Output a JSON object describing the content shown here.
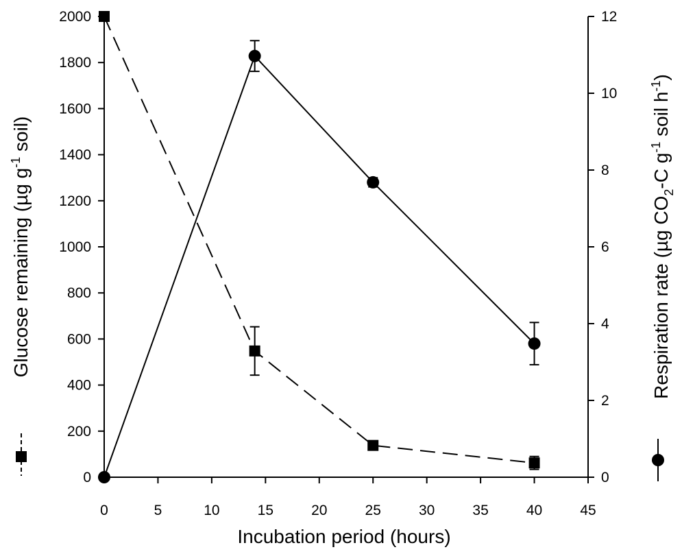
{
  "chart_data": {
    "type": "line",
    "xlabel": "Incubation period (hours)",
    "ylabel_left": {
      "text": "Glucose remaining (µg g",
      "sup": "-1",
      "tail": " soil)"
    },
    "ylabel_right": {
      "text": "Respiration rate (µg CO",
      "sub": "2",
      "mid": "-C g",
      "sup1": "-1",
      "mid2": " soil h",
      "sup2": "-1",
      "tail": ")"
    },
    "xlim": [
      0,
      45
    ],
    "ylim_left": [
      0,
      2000
    ],
    "ylim_right": [
      0,
      12
    ],
    "x_ticks": [
      0,
      5,
      10,
      15,
      20,
      25,
      30,
      35,
      40,
      45
    ],
    "y_ticks_left": [
      0,
      200,
      400,
      600,
      800,
      1000,
      1200,
      1400,
      1600,
      1800,
      2000
    ],
    "y_ticks_right": [
      0,
      2,
      4,
      6,
      8,
      10,
      12
    ],
    "series": [
      {
        "axis": "left",
        "marker": "square",
        "line_style": "dashed",
        "points": [
          {
            "x": 0,
            "y": 2000,
            "err": 0
          },
          {
            "x": 14,
            "y": 548,
            "err": 105
          },
          {
            "x": 25,
            "y": 138,
            "err": 10
          },
          {
            "x": 40,
            "y": 62,
            "err": 28
          }
        ]
      },
      {
        "axis": "right",
        "marker": "circle",
        "line_style": "solid",
        "points": [
          {
            "x": 0,
            "y": 0,
            "err": 0
          },
          {
            "x": 14,
            "y": 10.97,
            "err": 0.4
          },
          {
            "x": 25,
            "y": 7.68,
            "err": 0.12
          },
          {
            "x": 40,
            "y": 3.48,
            "err": 0.55
          }
        ]
      }
    ],
    "grid": false,
    "colors": {
      "ink": "#000000",
      "background": "#ffffff"
    }
  }
}
